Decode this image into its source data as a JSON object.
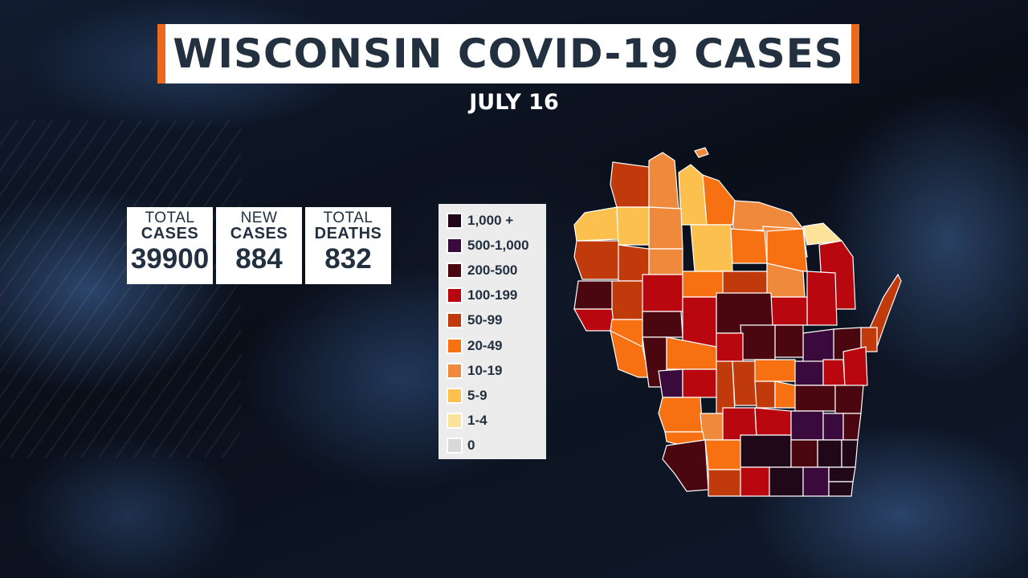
{
  "title": "WISCONSIN COVID-19 CASES",
  "date": "JULY 16",
  "stats": [
    {
      "line1": "TOTAL",
      "line2": "CASES",
      "value": "39900"
    },
    {
      "line1": "NEW",
      "line2": "CASES",
      "value": "884"
    },
    {
      "line1": "TOTAL",
      "line2": "DEATHS",
      "value": "832"
    }
  ],
  "legend": [
    {
      "label": "1,000 +",
      "color": "#200818"
    },
    {
      "label": "500-1,000",
      "color": "#3b0a3d"
    },
    {
      "label": "200-500",
      "color": "#4a0710"
    },
    {
      "label": "100-199",
      "color": "#b8070f"
    },
    {
      "label": "50-99",
      "color": "#c03a0c"
    },
    {
      "label": "20-49",
      "color": "#f77012"
    },
    {
      "label": "10-19",
      "color": "#ef8a3c"
    },
    {
      "label": "5-9",
      "color": "#fcc04e"
    },
    {
      "label": "1-4",
      "color": "#fde39a"
    },
    {
      "label": "0",
      "color": "#d9d9d9"
    }
  ],
  "colors": {
    "accent": "#ec6a1d",
    "title_text": "#22303f"
  }
}
